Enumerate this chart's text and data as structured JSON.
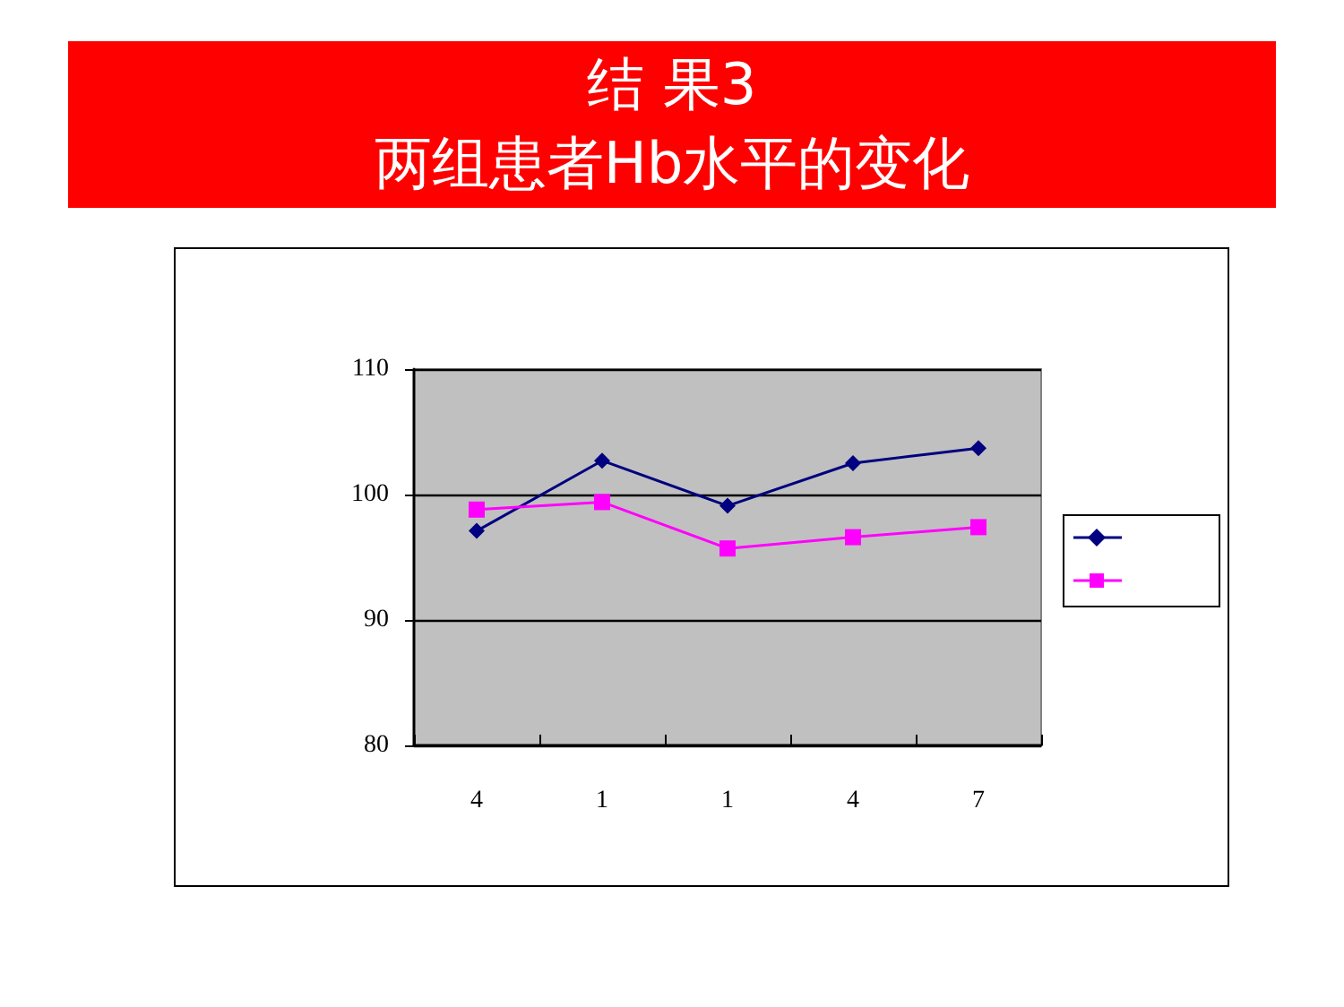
{
  "chart_data": {
    "type": "line",
    "title": "结 果3",
    "subtitle": "两组患者Hb水平的变化",
    "categories": [
      "4",
      "1",
      "1",
      "4",
      "7"
    ],
    "series": [
      {
        "color": "#000080",
        "marker": "diamond",
        "values": [
          97.1,
          102.7,
          99.1,
          102.5,
          103.7
        ]
      },
      {
        "color": "#ff00ff",
        "marker": "square",
        "values": [
          98.8,
          99.4,
          95.7,
          96.6,
          97.4
        ]
      }
    ],
    "ylim": [
      80,
      110
    ],
    "yticks": [
      80,
      90,
      100,
      110
    ],
    "grid": "y"
  }
}
